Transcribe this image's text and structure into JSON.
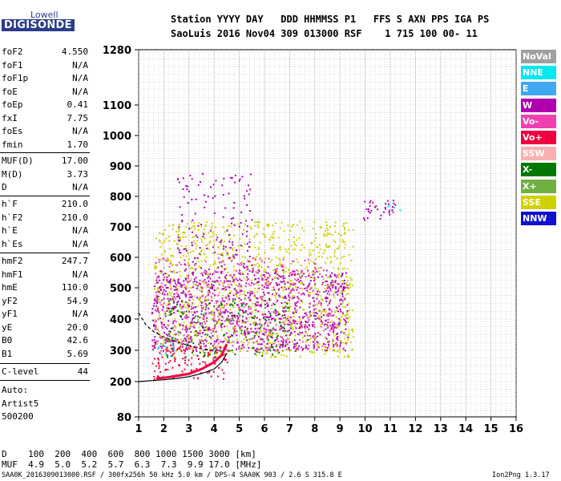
{
  "logo": {
    "line1": "Lowell",
    "line2": "DIGISONDE"
  },
  "header": {
    "labels": "Station YYYY DAY   DDD HHMMSS P1   FFS S AXN PPS IGA PS",
    "values": "SaoLuis 2016 Nov04 309 013000 RSF    1 715 100 00- 11"
  },
  "params_group1": [
    {
      "k": "foF2",
      "v": "4.550"
    },
    {
      "k": "foF1",
      "v": "N/A"
    },
    {
      "k": "foF1p",
      "v": "N/A"
    },
    {
      "k": "foE",
      "v": "N/A"
    },
    {
      "k": "foEp",
      "v": "0.41"
    },
    {
      "k": "fxI",
      "v": "7.75"
    },
    {
      "k": "foEs",
      "v": "N/A"
    },
    {
      "k": "fmin",
      "v": "1.70"
    }
  ],
  "params_group2": [
    {
      "k": "MUF(D)",
      "v": "17.00"
    },
    {
      "k": "M(D)",
      "v": "3.73"
    },
    {
      "k": "D",
      "v": "N/A"
    }
  ],
  "params_group3": [
    {
      "k": "h`F",
      "v": "210.0"
    },
    {
      "k": "h`F2",
      "v": "210.0"
    },
    {
      "k": "h`E",
      "v": "N/A"
    },
    {
      "k": "h`Es",
      "v": "N/A"
    }
  ],
  "params_group4": [
    {
      "k": "hmF2",
      "v": "247.7"
    },
    {
      "k": "hmF1",
      "v": "N/A"
    },
    {
      "k": "hmE",
      "v": "110.0"
    },
    {
      "k": "yF2",
      "v": "54.9"
    },
    {
      "k": "yF1",
      "v": "N/A"
    },
    {
      "k": "yE",
      "v": "20.0"
    },
    {
      "k": "B0",
      "v": "42.6"
    },
    {
      "k": "B1",
      "v": "5.69"
    }
  ],
  "clevel": {
    "k": "C-level",
    "v": "44"
  },
  "auto": {
    "line1": "Auto:",
    "line2": "Artist5",
    "line3": "500200"
  },
  "legend": [
    {
      "label": "NoVal",
      "color": "#a0a0a0"
    },
    {
      "label": "NNE",
      "color": "#00e8f0"
    },
    {
      "label": "E",
      "color": "#40a8f0"
    },
    {
      "label": "W",
      "color": "#b000b0"
    },
    {
      "label": "Vo-",
      "color": "#f040b0"
    },
    {
      "label": "Vo+",
      "color": "#f00040"
    },
    {
      "label": "SSW",
      "color": "#f8b0b0"
    },
    {
      "label": "X-",
      "color": "#007800"
    },
    {
      "label": "X+",
      "color": "#70b040"
    },
    {
      "label": "SSE",
      "color": "#d0d000"
    },
    {
      "label": "NNW",
      "color": "#1010d0"
    }
  ],
  "bottom": {
    "d_row": "D    100  200  400  600  800 1000 1500 3000 [km]",
    "muf_row": "MUF  4.9  5.0  5.2  5.7  6.3  7.3  9.9 17.0 [MHz]"
  },
  "footer": {
    "left": "SAA0K_2016309013000.RSF / 300fx256h 50 kHz 5.0 km / DPS-4 SAA0K 903 / 2.6 S 315.8 E",
    "right": "Ion2Png 1.3.17"
  },
  "chart_data": {
    "type": "scatter",
    "x_ticks": [
      1,
      2,
      3,
      4,
      5,
      6,
      7,
      8,
      9,
      10,
      11,
      12,
      13,
      14,
      15,
      16
    ],
    "y_ticks": [
      80,
      200,
      300,
      400,
      500,
      600,
      700,
      800,
      900,
      1000,
      1100,
      1280
    ],
    "xlim": [
      1,
      16
    ],
    "ylim": [
      80,
      1280
    ],
    "grid": true,
    "traces": [
      {
        "name": "F2 trace",
        "color": "#f00040",
        "x": [
          1.7,
          2.0,
          2.5,
          3.0,
          3.5,
          4.0,
          4.3,
          4.5
        ],
        "y": [
          210,
          212,
          218,
          225,
          240,
          262,
          285,
          320
        ]
      },
      {
        "name": "virtual height model",
        "color": "#000000",
        "x": [
          1.0,
          1.5,
          2.0,
          2.5,
          3.0,
          3.5,
          4.0,
          4.3,
          4.5
        ],
        "y": [
          200,
          203,
          206,
          210,
          216,
          226,
          240,
          262,
          290
        ]
      },
      {
        "name": "cusp curve",
        "color": "#000000",
        "x": [
          1.0,
          1.3,
          1.6,
          2.0,
          2.5,
          3.0,
          3.5,
          4.0
        ],
        "y": [
          420,
          380,
          360,
          342,
          328,
          315,
          305,
          300
        ]
      }
    ],
    "echo_bands": [
      {
        "color": "#b000b0",
        "x": [
          1.5,
          9.3
        ],
        "y": [
          300,
          560
        ],
        "density": 0.9
      },
      {
        "color": "#d0d000",
        "x": [
          1.6,
          9.5
        ],
        "y": [
          280,
          720
        ],
        "density": 0.5
      },
      {
        "color": "#f00040",
        "x": [
          1.5,
          4.5
        ],
        "y": [
          210,
          320
        ],
        "density": 0.6
      },
      {
        "color": "#40a8f0",
        "x": [
          1.7,
          2.4
        ],
        "y": [
          280,
          340
        ],
        "density": 0.6
      },
      {
        "color": "#007800",
        "x": [
          2.0,
          7.0
        ],
        "y": [
          280,
          460
        ],
        "density": 0.3
      },
      {
        "color": "#f040b0",
        "x": [
          1.6,
          9.0
        ],
        "y": [
          300,
          600
        ],
        "density": 0.3
      },
      {
        "color": "#b000b0",
        "x": [
          9.8,
          11.2
        ],
        "y": [
          725,
          790
        ],
        "density": 0.6
      },
      {
        "color": "#00e8f0",
        "x": [
          10.8,
          11.4
        ],
        "y": [
          750,
          780
        ],
        "density": 0.4
      },
      {
        "color": "#b000b0",
        "x": [
          2.5,
          5.5
        ],
        "y": [
          560,
          880
        ],
        "density": 0.25
      }
    ]
  }
}
